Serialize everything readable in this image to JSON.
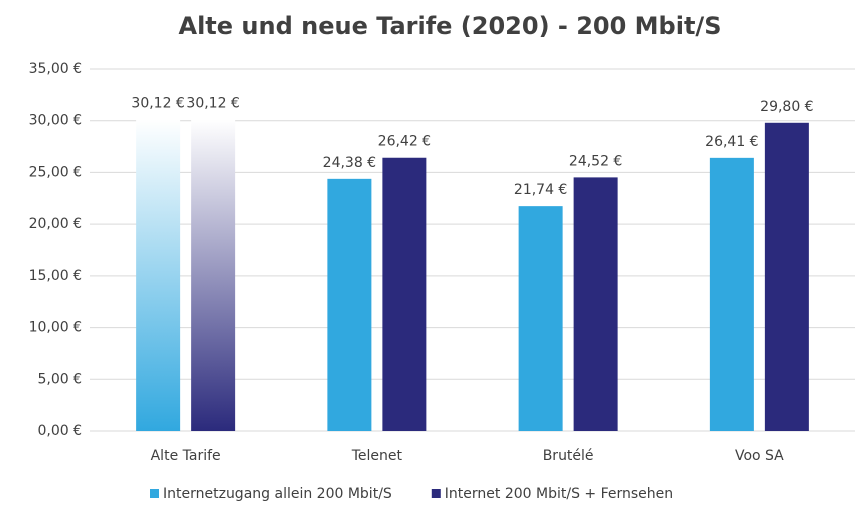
{
  "chart_data": {
    "type": "bar",
    "title": "Alte und neue Tarife (2020) - 200 Mbit/S",
    "categories": [
      "Alte Tarife",
      "Telenet",
      "Brutélé",
      "Voo SA"
    ],
    "series": [
      {
        "name": "Internetzugang allein 200 Mbit/S",
        "color": "#31a8df",
        "values": [
          30.12,
          24.38,
          21.74,
          26.41
        ],
        "value_labels": [
          "30,12 €",
          "24,38 €",
          "21,74 €",
          "26,41 €"
        ]
      },
      {
        "name": "Internet 200 Mbit/S + Fernsehen",
        "color": "#2b2a7c",
        "values": [
          30.12,
          26.42,
          24.52,
          29.8
        ],
        "value_labels": [
          "30,12 €",
          "26,42 €",
          "24,52 €",
          "29,80 €"
        ]
      }
    ],
    "gradient_categories": [
      0
    ],
    "ylim": [
      0,
      35
    ],
    "yticks": [
      {
        "value": 0,
        "label": "0,00 €"
      },
      {
        "value": 5,
        "label": "5,00 €"
      },
      {
        "value": 10,
        "label": "10,00 €"
      },
      {
        "value": 15,
        "label": "15,00 €"
      },
      {
        "value": 20,
        "label": "20,00 €"
      },
      {
        "value": 25,
        "label": "25,00 €"
      },
      {
        "value": 30,
        "label": "30,00 €"
      },
      {
        "value": 35,
        "label": "35,00 €"
      }
    ],
    "grid": true,
    "legend": "bottom"
  }
}
